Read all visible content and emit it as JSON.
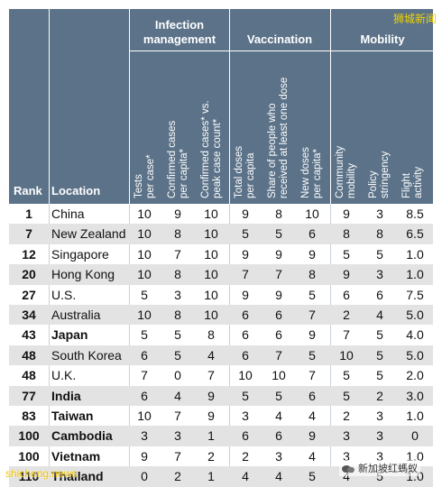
{
  "headers": {
    "rank": "Rank",
    "location": "Location",
    "groups": [
      "Infection management",
      "Vaccination",
      "Mobility"
    ],
    "columns": [
      [
        "Tests",
        "per case*"
      ],
      [
        "Confirmed cases",
        "per capita*"
      ],
      [
        "Confirmed cases* vs.",
        "peak case count*"
      ],
      [
        "Total doses",
        "per capita"
      ],
      [
        "Share of people who",
        "received at least one dose"
      ],
      [
        "New doses",
        "per capita*"
      ],
      [
        "Community",
        "mobility"
      ],
      [
        "Policy",
        "stringency"
      ],
      [
        "Flight",
        "activity"
      ]
    ]
  },
  "rows": [
    {
      "rank": "1",
      "location": "China",
      "bold": false,
      "values": [
        "10",
        "9",
        "10",
        "9",
        "8",
        "10",
        "9",
        "3",
        "8.5"
      ]
    },
    {
      "rank": "7",
      "location": "New Zealand",
      "bold": false,
      "values": [
        "10",
        "8",
        "10",
        "5",
        "5",
        "6",
        "8",
        "8",
        "6.5"
      ]
    },
    {
      "rank": "12",
      "location": "Singapore",
      "bold": false,
      "values": [
        "10",
        "7",
        "10",
        "9",
        "9",
        "9",
        "5",
        "5",
        "1.0"
      ]
    },
    {
      "rank": "20",
      "location": "Hong Kong",
      "bold": false,
      "values": [
        "10",
        "8",
        "10",
        "7",
        "7",
        "8",
        "9",
        "3",
        "1.0"
      ]
    },
    {
      "rank": "27",
      "location": "U.S.",
      "bold": false,
      "values": [
        "5",
        "3",
        "10",
        "9",
        "9",
        "5",
        "6",
        "6",
        "7.5"
      ]
    },
    {
      "rank": "34",
      "location": "Australia",
      "bold": false,
      "values": [
        "10",
        "8",
        "10",
        "6",
        "6",
        "7",
        "2",
        "4",
        "5.0"
      ]
    },
    {
      "rank": "43",
      "location": "Japan",
      "bold": true,
      "values": [
        "5",
        "5",
        "8",
        "6",
        "6",
        "9",
        "7",
        "5",
        "4.0"
      ]
    },
    {
      "rank": "48",
      "location": "South Korea",
      "bold": false,
      "values": [
        "6",
        "5",
        "4",
        "6",
        "7",
        "5",
        "10",
        "5",
        "5.0"
      ]
    },
    {
      "rank": "48",
      "location": "U.K.",
      "bold": false,
      "values": [
        "7",
        "0",
        "7",
        "10",
        "10",
        "7",
        "5",
        "5",
        "2.0"
      ]
    },
    {
      "rank": "77",
      "location": "India",
      "bold": true,
      "values": [
        "6",
        "4",
        "9",
        "5",
        "5",
        "6",
        "5",
        "2",
        "3.0"
      ]
    },
    {
      "rank": "83",
      "location": "Taiwan",
      "bold": true,
      "values": [
        "10",
        "7",
        "9",
        "3",
        "4",
        "4",
        "2",
        "3",
        "1.0"
      ]
    },
    {
      "rank": "100",
      "location": "Cambodia",
      "bold": true,
      "values": [
        "3",
        "3",
        "1",
        "6",
        "6",
        "9",
        "3",
        "3",
        "0"
      ]
    },
    {
      "rank": "100",
      "location": "Vietnam",
      "bold": true,
      "values": [
        "9",
        "7",
        "2",
        "2",
        "3",
        "4",
        "3",
        "3",
        "1.0"
      ]
    },
    {
      "rank": "110",
      "location": "Thailand",
      "bold": true,
      "values": [
        "0",
        "2",
        "1",
        "4",
        "4",
        "5",
        "4",
        "5",
        "1.0"
      ]
    }
  ],
  "watermarks": {
    "top_right": "狮城新闻",
    "bottom_left": "shicheng.news",
    "bottom_right": "新加坡红螞蚁"
  },
  "colors": {
    "header_bg": "#5b7288",
    "row_alt": "#e3e3e3",
    "watermark": "#f1d300"
  }
}
